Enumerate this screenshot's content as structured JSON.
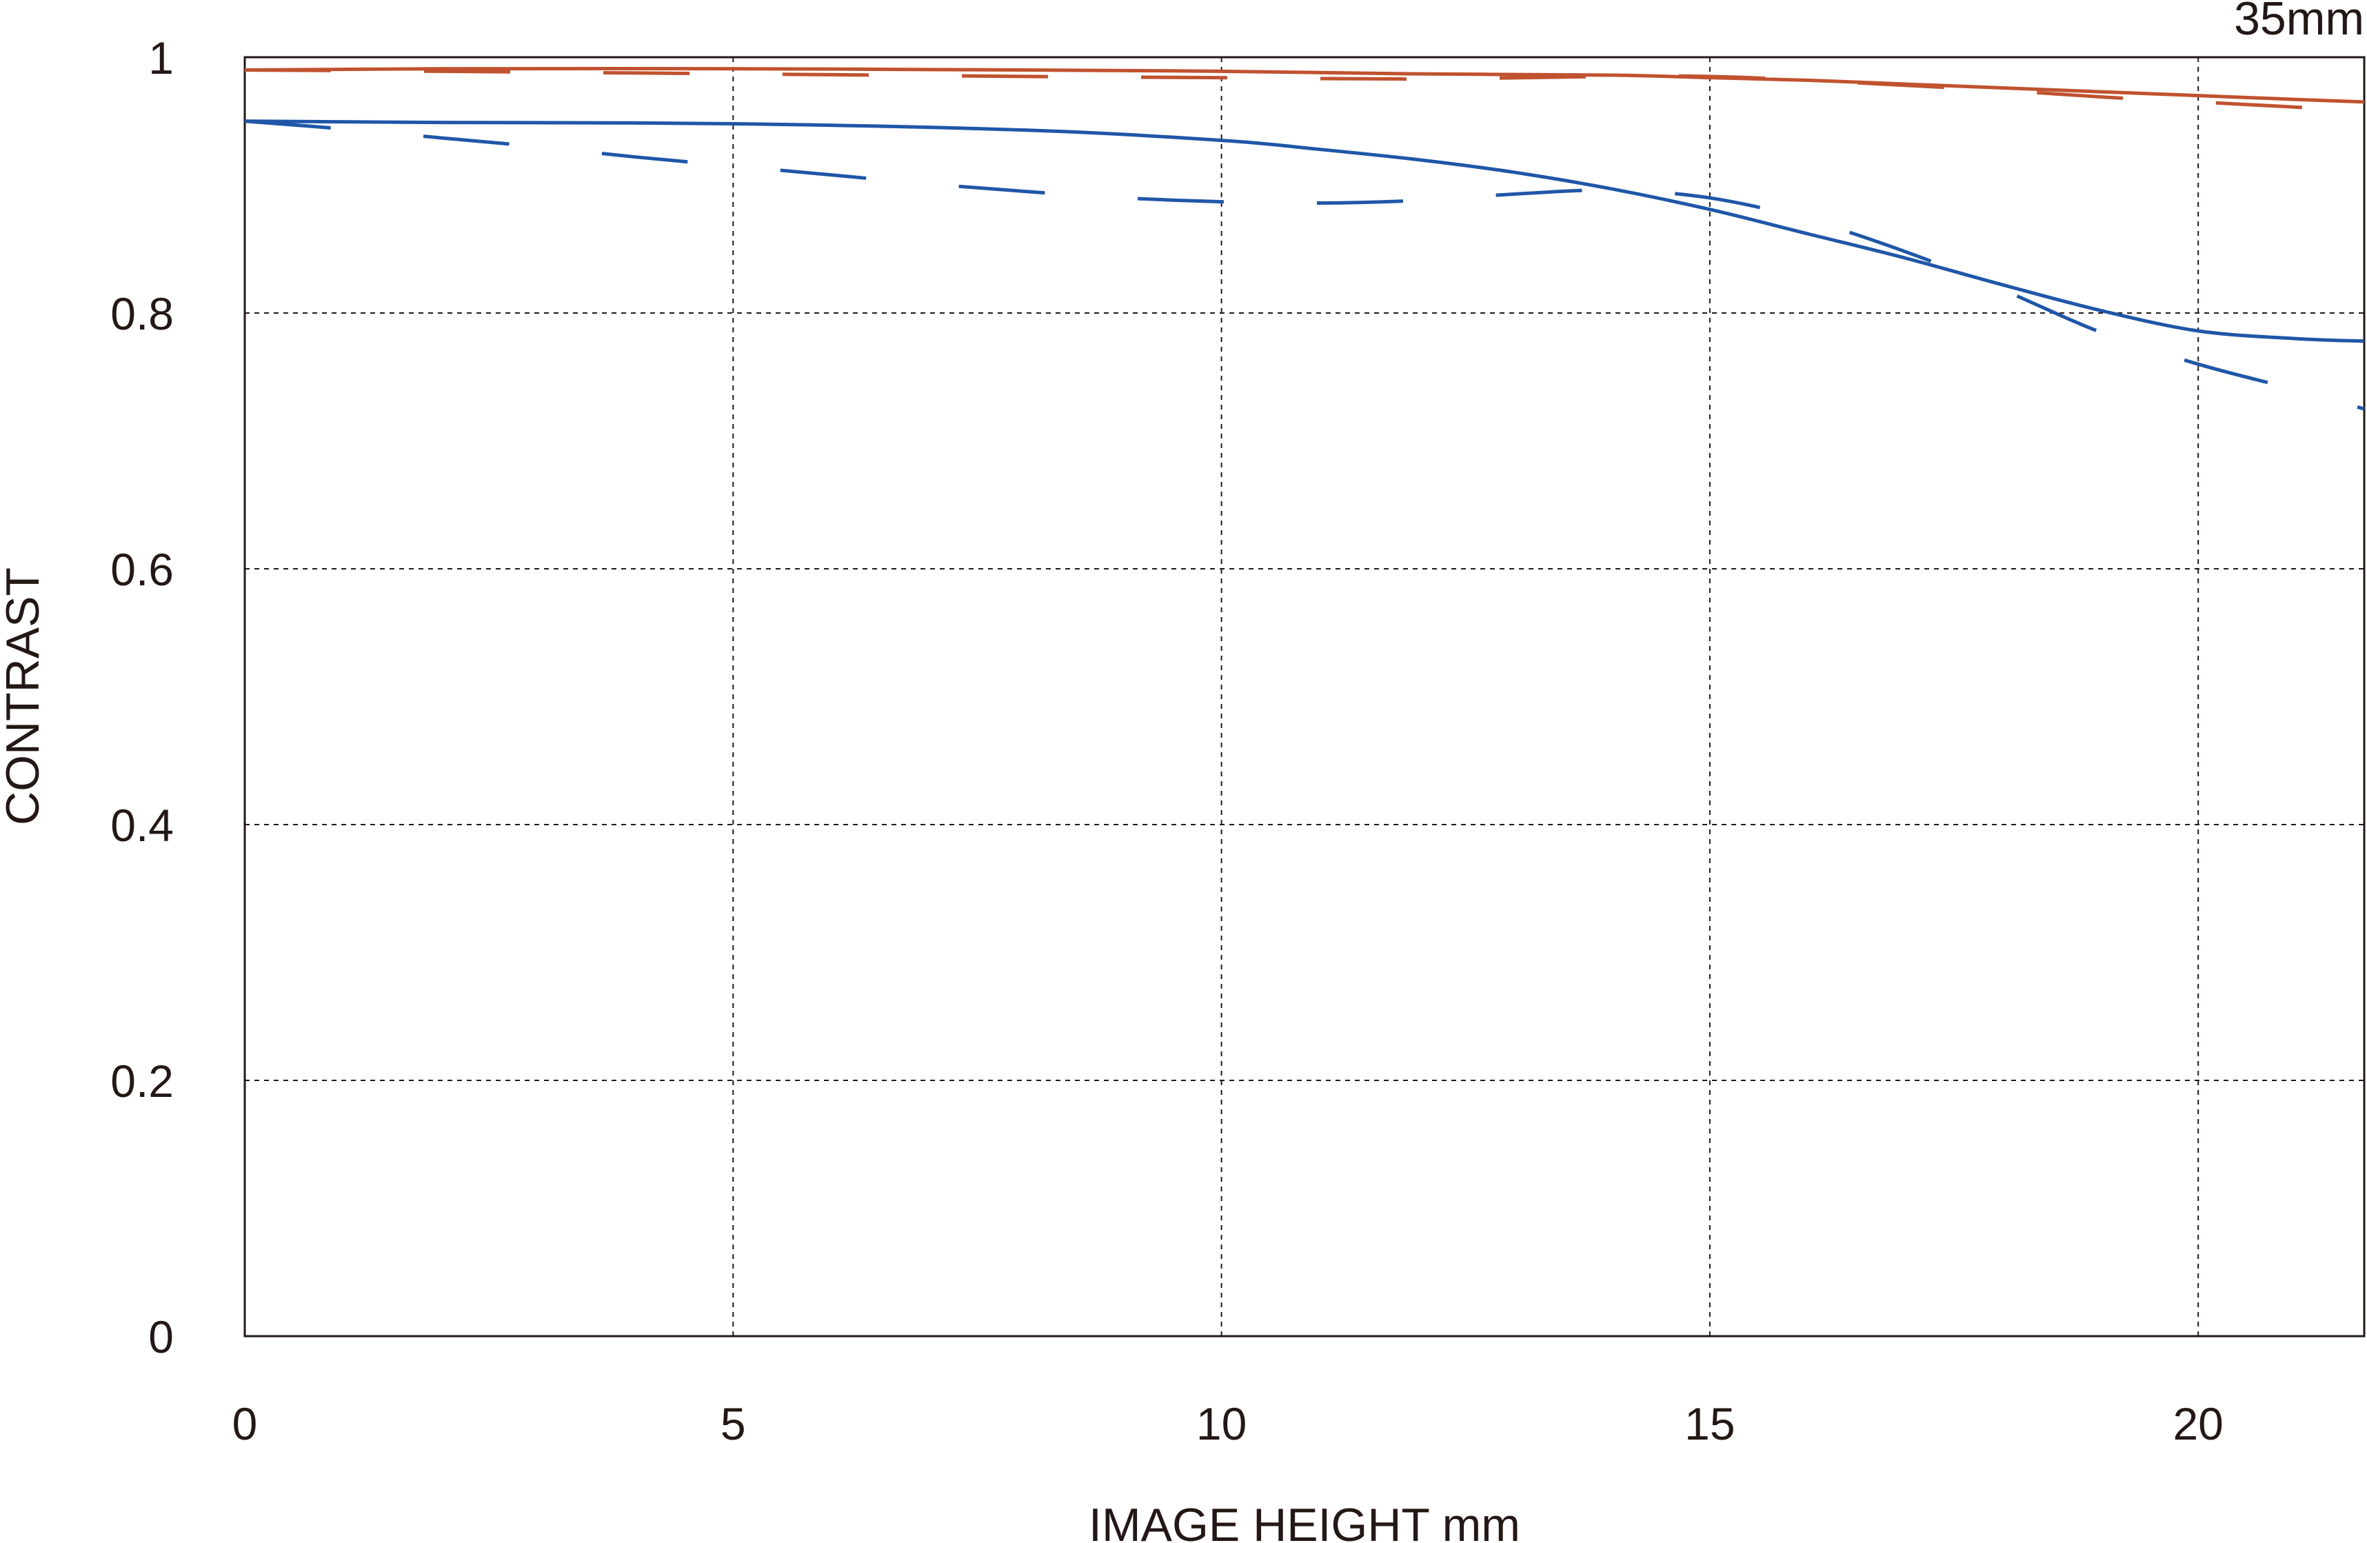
{
  "chart_data": {
    "type": "line",
    "title": "",
    "annotation": "35mm",
    "xlabel": "IMAGE HEIGHT  mm",
    "ylabel": "CONTRAST",
    "xlim": [
      0,
      21.7
    ],
    "ylim": [
      0,
      1
    ],
    "grid": true,
    "xticks": [
      "0",
      "5",
      "10",
      "15",
      "20"
    ],
    "yticks": [
      "0",
      "0.2",
      "0.4",
      "0.6",
      "0.8",
      "1"
    ],
    "series": [
      {
        "color": "#c0522f",
        "style": "solid",
        "x": [
          0,
          2,
          5,
          8,
          10,
          12,
          14,
          15,
          16,
          17,
          18,
          19,
          20,
          21,
          21.7
        ],
        "y": [
          0.99,
          0.991,
          0.991,
          0.99,
          0.989,
          0.987,
          0.986,
          0.984,
          0.982,
          0.979,
          0.976,
          0.973,
          0.97,
          0.967,
          0.965
        ]
      },
      {
        "color": "#c0522f",
        "style": "dashed",
        "x": [
          0,
          2,
          5,
          8,
          10,
          12,
          14,
          15,
          16,
          17,
          18,
          19,
          20,
          21,
          21.7
        ],
        "y": [
          0.99,
          0.989,
          0.987,
          0.985,
          0.984,
          0.983,
          0.985,
          0.985,
          0.982,
          0.978,
          0.974,
          0.969,
          0.965,
          0.961,
          0.958
        ]
      },
      {
        "color": "#1f56a8",
        "style": "solid",
        "x": [
          0,
          2,
          5,
          8,
          10,
          11,
          12,
          13,
          14,
          15,
          16,
          17,
          18,
          19,
          20,
          21,
          21.7
        ],
        "y": [
          0.95,
          0.949,
          0.948,
          0.943,
          0.935,
          0.928,
          0.92,
          0.91,
          0.897,
          0.881,
          0.862,
          0.843,
          0.822,
          0.802,
          0.786,
          0.78,
          0.778
        ]
      },
      {
        "color": "#1f56a8",
        "style": "dashed",
        "x": [
          0,
          1,
          2,
          3,
          4,
          5,
          6,
          7,
          8,
          9,
          10,
          11,
          12,
          13,
          14,
          15,
          16,
          17,
          18,
          19,
          20,
          21,
          21.7
        ],
        "y": [
          0.95,
          0.944,
          0.937,
          0.93,
          0.922,
          0.915,
          0.908,
          0.901,
          0.895,
          0.89,
          0.887,
          0.886,
          0.888,
          0.893,
          0.896,
          0.89,
          0.873,
          0.848,
          0.818,
          0.785,
          0.76,
          0.74,
          0.725
        ]
      }
    ]
  }
}
